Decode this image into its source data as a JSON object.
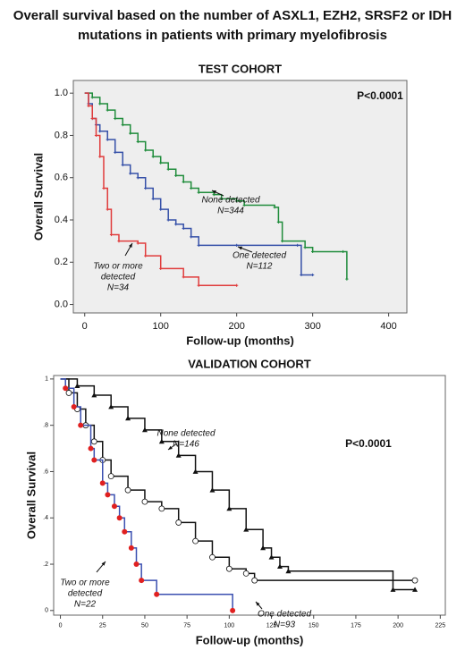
{
  "title": [
    "Overall survival based on the number of ASXL1, EZH2, SRSF2 or IDH",
    "mutations in patients with primary myelofibrosis"
  ],
  "chart_data": [
    {
      "type": "step",
      "title": "TEST COHORT",
      "xlabel": "Follow-up (months)",
      "ylabel": "Overall Survival",
      "xlim": [
        -15,
        424
      ],
      "ylim": [
        -0.04,
        1.06
      ],
      "xticks": [
        0,
        100,
        200,
        300,
        400
      ],
      "yticks": [
        {
          "value": 0,
          "label": "0.0"
        },
        {
          "value": 0.2,
          "label": "0.2"
        },
        {
          "value": 0.4,
          "label": "0.4"
        },
        {
          "value": 0.6,
          "label": "0.6"
        },
        {
          "value": 0.8,
          "label": "0.8"
        },
        {
          "value": 1,
          "label": "1.0"
        }
      ],
      "background": "#eeeeee",
      "annotation": "P<0.0001",
      "series": [
        {
          "label": [
            "None detected",
            "N=344"
          ],
          "color": "#1f8c3b",
          "marker": "plus",
          "x": [
            0,
            10,
            20,
            30,
            40,
            50,
            60,
            70,
            80,
            90,
            100,
            110,
            120,
            130,
            140,
            150,
            170,
            180,
            200,
            210,
            250,
            255,
            260,
            290,
            300,
            340,
            345
          ],
          "values": [
            1.0,
            0.98,
            0.95,
            0.92,
            0.88,
            0.85,
            0.81,
            0.77,
            0.73,
            0.7,
            0.67,
            0.64,
            0.61,
            0.58,
            0.55,
            0.53,
            0.52,
            0.5,
            0.49,
            0.47,
            0.46,
            0.39,
            0.3,
            0.27,
            0.25,
            0.25,
            0.12
          ]
        },
        {
          "label": [
            "One detected",
            "N=112"
          ],
          "color": "#3550a8",
          "marker": "plus",
          "x": [
            0,
            5,
            10,
            15,
            20,
            30,
            40,
            50,
            60,
            70,
            80,
            90,
            100,
            110,
            120,
            130,
            140,
            150,
            200,
            280,
            285,
            300
          ],
          "values": [
            1.0,
            0.95,
            0.88,
            0.85,
            0.82,
            0.78,
            0.72,
            0.66,
            0.62,
            0.6,
            0.55,
            0.5,
            0.45,
            0.4,
            0.38,
            0.36,
            0.32,
            0.28,
            0.28,
            0.28,
            0.14,
            0.14
          ]
        },
        {
          "label": [
            "Two or more",
            "detected",
            "N=34"
          ],
          "color": "#e03c3c",
          "marker": "plus",
          "x": [
            0,
            5,
            10,
            15,
            20,
            25,
            30,
            35,
            45,
            70,
            80,
            100,
            130,
            150,
            200
          ],
          "values": [
            1.0,
            0.94,
            0.88,
            0.8,
            0.7,
            0.55,
            0.45,
            0.33,
            0.3,
            0.29,
            0.23,
            0.17,
            0.13,
            0.09,
            0.09
          ]
        }
      ]
    },
    {
      "type": "step",
      "title": "VALIDATION COHORT",
      "xlabel": "Follow-up (months)",
      "ylabel": "Overall Survival",
      "xlim": [
        -4,
        228
      ],
      "ylim": [
        -0.02,
        1.015
      ],
      "xticks": [
        0,
        25,
        50,
        75,
        100,
        125,
        150,
        175,
        200,
        225
      ],
      "yticks": [
        0,
        {
          "value": 0.2,
          "label": ".2"
        },
        {
          "value": 0.4,
          "label": ".4"
        },
        {
          "value": 0.6,
          "label": ".6"
        },
        {
          "value": 0.8,
          "label": ".8"
        },
        1
      ],
      "background": "#ffffff",
      "annotation": "P<0.0001",
      "series": [
        {
          "label": [
            "None detected",
            "N=146"
          ],
          "color": "#111111",
          "marker": "triangle",
          "marker_color": "#111111",
          "x": [
            0,
            10,
            20,
            30,
            40,
            50,
            60,
            70,
            80,
            90,
            100,
            110,
            120,
            125,
            130,
            135,
            197,
            210
          ],
          "values": [
            1.0,
            0.97,
            0.93,
            0.88,
            0.83,
            0.78,
            0.73,
            0.67,
            0.6,
            0.52,
            0.44,
            0.35,
            0.27,
            0.23,
            0.19,
            0.17,
            0.09,
            0.09
          ]
        },
        {
          "label": [
            "One detected",
            "N=93"
          ],
          "color": "#111111",
          "marker": "circle-open",
          "marker_color": "#111111",
          "x": [
            0,
            5,
            10,
            15,
            20,
            25,
            30,
            40,
            50,
            60,
            70,
            80,
            90,
            100,
            110,
            115,
            210
          ],
          "values": [
            1.0,
            0.94,
            0.87,
            0.8,
            0.73,
            0.65,
            0.58,
            0.52,
            0.47,
            0.44,
            0.38,
            0.3,
            0.23,
            0.18,
            0.16,
            0.13,
            0.13
          ]
        },
        {
          "label": [
            "Two or more",
            "detected",
            "N=22"
          ],
          "color": "#3a4fb0",
          "marker": "circle",
          "marker_color": "#e02020",
          "x": [
            0,
            3,
            8,
            12,
            18,
            20,
            25,
            28,
            32,
            35,
            38,
            42,
            45,
            48,
            57,
            102
          ],
          "values": [
            1.0,
            0.96,
            0.88,
            0.8,
            0.7,
            0.65,
            0.55,
            0.5,
            0.45,
            0.4,
            0.34,
            0.27,
            0.2,
            0.13,
            0.07,
            0.0
          ]
        }
      ]
    }
  ]
}
